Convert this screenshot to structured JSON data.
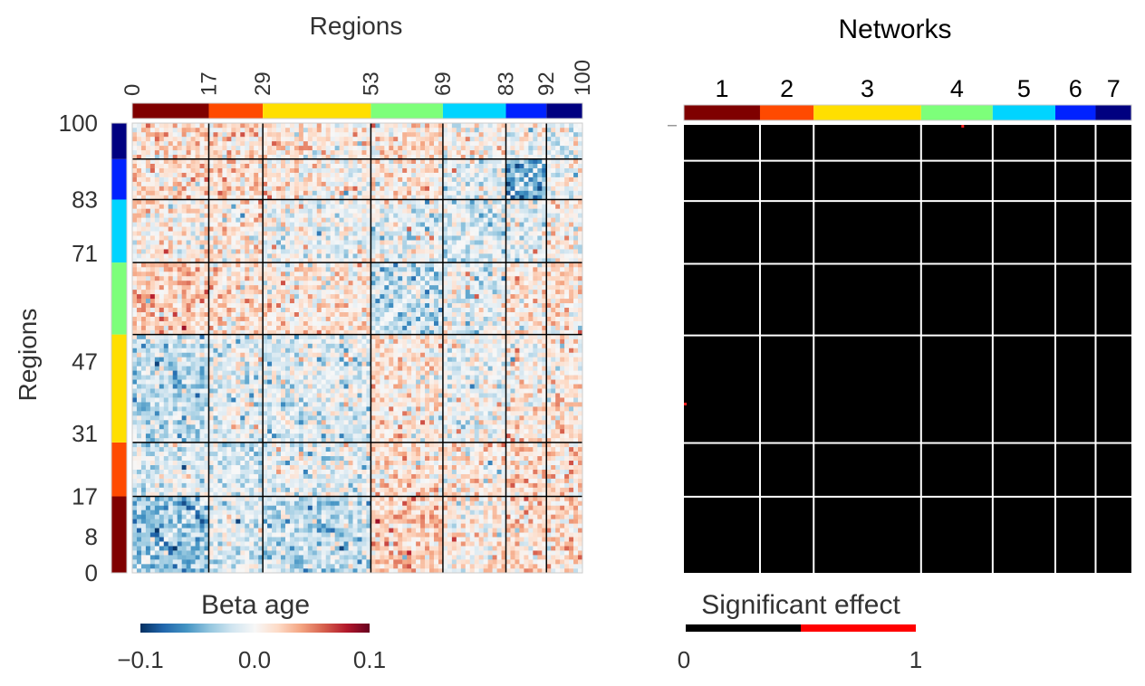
{
  "chart_data": [
    {
      "type": "heatmap",
      "title": "Regions",
      "ylabel": "Regions",
      "x_range": [
        0,
        100
      ],
      "y_range": [
        0,
        100
      ],
      "x_ticks": [
        "0",
        "17",
        "29",
        "53",
        "69",
        "83",
        "92",
        "100"
      ],
      "y_ticks": [
        "100",
        "83",
        "71",
        "47",
        "31",
        "17",
        "8",
        "0"
      ],
      "network_boundaries": [
        0,
        17,
        29,
        53,
        69,
        83,
        92,
        100
      ],
      "network_colors": [
        "#7f0000",
        "#ff4a00",
        "#ffdf00",
        "#7dff7a",
        "#00d4ff",
        "#0022ff",
        "#000080"
      ],
      "colorbar": {
        "label": "Beta age",
        "min": -0.1,
        "max": 0.1,
        "tick_labels": [
          "−0.1",
          "0.0",
          "0.1"
        ],
        "colors": [
          "#053061",
          "#2166ac",
          "#4393c3",
          "#92c5de",
          "#d1e5f0",
          "#f7f7f7",
          "#fddbc7",
          "#f4a582",
          "#d6604d",
          "#b2182b",
          "#67001f"
        ]
      },
      "block_means": [
        [
          -0.04,
          -0.012,
          -0.025,
          0.022,
          0.006,
          0.018,
          0.015
        ],
        [
          -0.012,
          -0.02,
          -0.008,
          0.015,
          0.008,
          0.017,
          0.012
        ],
        [
          -0.025,
          -0.008,
          -0.015,
          0.012,
          -0.005,
          0.005,
          0.008
        ],
        [
          0.022,
          0.015,
          0.012,
          -0.025,
          -0.01,
          0.01,
          0.013
        ],
        [
          0.006,
          0.008,
          -0.005,
          -0.01,
          -0.02,
          -0.012,
          0.004
        ],
        [
          0.018,
          0.017,
          0.005,
          0.01,
          -0.012,
          -0.05,
          0.002
        ],
        [
          0.015,
          0.012,
          0.008,
          0.013,
          0.004,
          0.002,
          -0.015
        ]
      ]
    },
    {
      "type": "heatmap",
      "title": "Networks",
      "network_labels": [
        "1",
        "2",
        "3",
        "4",
        "5",
        "6",
        "7"
      ],
      "network_boundaries": [
        0,
        17,
        29,
        53,
        69,
        83,
        92,
        100
      ],
      "network_colors": [
        "#7f0000",
        "#ff4a00",
        "#ffdf00",
        "#7dff7a",
        "#00d4ff",
        "#0022ff",
        "#000080"
      ],
      "values": "binary significance mask, all 0 except the two cells listed",
      "significant_cells": [
        {
          "row": 99,
          "col": 62,
          "value": 1
        },
        {
          "row": 37,
          "col": 0,
          "value": 1
        }
      ],
      "colorbar": {
        "label": "Significant effect",
        "min": 0,
        "max": 1,
        "tick_labels": [
          "0",
          "1"
        ],
        "colors": [
          "#000000",
          "#ff0000"
        ]
      }
    }
  ]
}
